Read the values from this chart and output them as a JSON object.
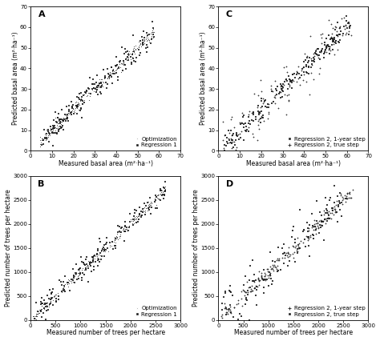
{
  "fig_width": 4.74,
  "fig_height": 4.26,
  "dpi": 100,
  "background_color": "#ffffff",
  "panel_A": {
    "xlabel": "Measured basal area (m²·ha⁻¹)",
    "ylabel": "Predicted basal area (m²·ha⁻¹)",
    "xlim": [
      0,
      70
    ],
    "ylim": [
      0,
      70
    ],
    "xticks": [
      0,
      10,
      20,
      30,
      40,
      50,
      60,
      70
    ],
    "yticks": [
      0,
      10,
      20,
      30,
      40,
      50,
      60,
      70
    ],
    "legend": [
      "Optimization",
      "Regression 1"
    ],
    "label": "A"
  },
  "panel_B": {
    "xlabel": "Measured number of trees per hectare",
    "ylabel": "Predicted number of trees per hectare",
    "xlim": [
      0,
      3000
    ],
    "ylim": [
      0,
      3000
    ],
    "xticks": [
      0,
      500,
      1000,
      1500,
      2000,
      2500,
      3000
    ],
    "yticks": [
      0,
      500,
      1000,
      1500,
      2000,
      2500,
      3000
    ],
    "legend": [
      "Optimization",
      "Regression 1"
    ],
    "label": "B"
  },
  "panel_C": {
    "xlabel": "Measured basal area (m²·ha⁻¹)",
    "ylabel": "Predicted basal area (m²·ha⁻¹)",
    "xlim": [
      0,
      70
    ],
    "ylim": [
      0,
      70
    ],
    "xticks": [
      0,
      10,
      20,
      30,
      40,
      50,
      60,
      70
    ],
    "yticks": [
      0,
      10,
      20,
      30,
      40,
      50,
      60,
      70
    ],
    "legend": [
      "Regression 2, 1-year step",
      "Regression 2, true step"
    ],
    "label": "C"
  },
  "panel_D": {
    "xlabel": "Measured number of trees per hectare",
    "ylabel": "Predicted number of trees per hectare",
    "xlim": [
      0,
      3000
    ],
    "ylim": [
      0,
      3000
    ],
    "xticks": [
      0,
      500,
      1000,
      1500,
      2000,
      2500,
      3000
    ],
    "yticks": [
      0,
      500,
      1000,
      1500,
      2000,
      2500,
      3000
    ],
    "legend": [
      "Regression 2, 1-year step",
      "Regression 2, true step"
    ],
    "label": "D"
  },
  "dot_color": "#1a1a1a",
  "font_size_label": 5.5,
  "font_size_tick": 5,
  "font_size_legend": 5,
  "font_size_panel": 8
}
